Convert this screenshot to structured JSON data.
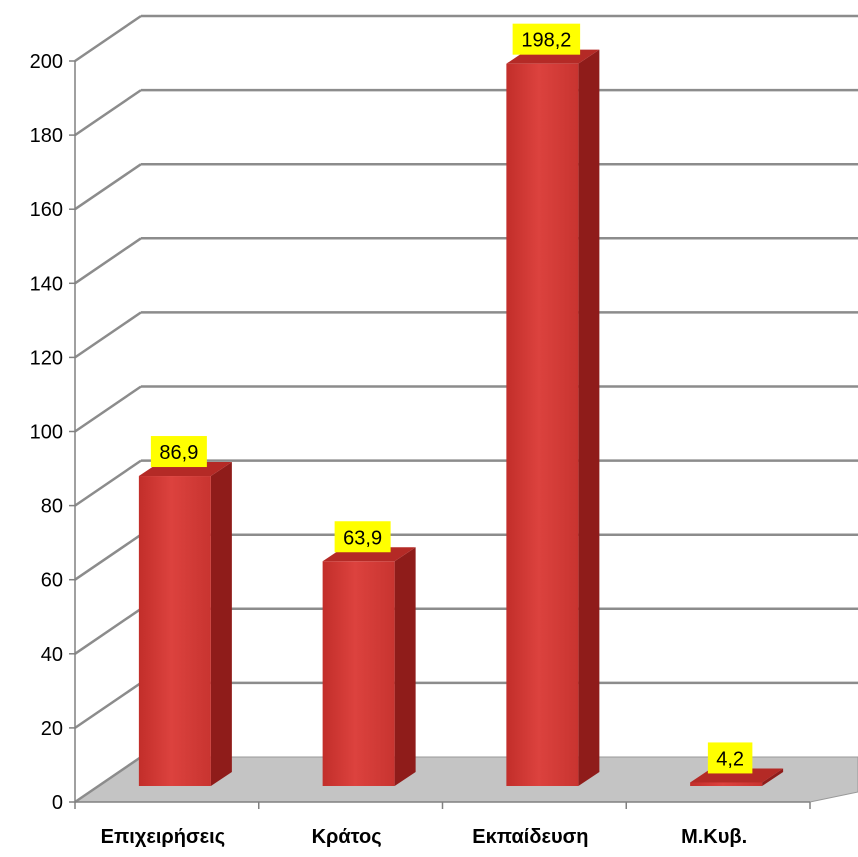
{
  "chart_data": {
    "type": "bar",
    "style": "3d-column",
    "categories": [
      "Επιχειρήσεις",
      "Κράτος",
      "Εκπαίδευση",
      "Μ.Κυβ."
    ],
    "values": [
      86.9,
      63.9,
      198.2,
      4.2
    ],
    "data_labels": [
      "86,9",
      "63,9",
      "198,2",
      "4,2"
    ],
    "y_ticks": [
      "0",
      "20",
      "40",
      "60",
      "80",
      "100",
      "120",
      "140",
      "160",
      "180",
      "200"
    ],
    "ylim": [
      0,
      200
    ],
    "grid": true,
    "legend": "none",
    "colors": {
      "bar_front": "#d43a36",
      "bar_side": "#8f1c1a",
      "bar_top": "#b42a26",
      "label_bg": "#ffff00",
      "floor": "#c4c4c4",
      "grid": "#8c8c8c"
    }
  }
}
